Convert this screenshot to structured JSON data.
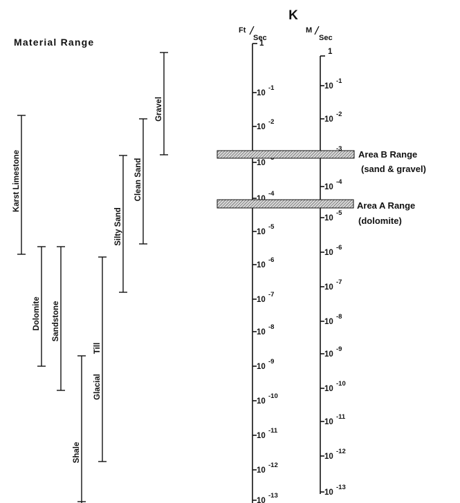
{
  "header": {
    "k_label": "K",
    "material_range_label": "Material Range"
  },
  "axes": {
    "ft": {
      "unit_main": "Ft",
      "unit_sub": "Sec"
    },
    "m": {
      "unit_main": "M",
      "unit_sub": "Sec"
    }
  },
  "materials": [
    {
      "name": "Karst Limestone"
    },
    {
      "name": "Dolomite"
    },
    {
      "name": "Sandstone"
    },
    {
      "name": "Shale"
    },
    {
      "name": "Glacial"
    },
    {
      "name": "Till"
    },
    {
      "name": "Silty Sand"
    },
    {
      "name": "Clean Sand"
    },
    {
      "name": "Gravel"
    }
  ],
  "areas": [
    {
      "title": "Area B Range",
      "subtitle": "(sand & gravel)"
    },
    {
      "title": "Area A Range",
      "subtitle": "(dolomite)"
    }
  ],
  "colors": {
    "ink": "#111111",
    "hatch_bg": "#d8d8d8"
  }
}
